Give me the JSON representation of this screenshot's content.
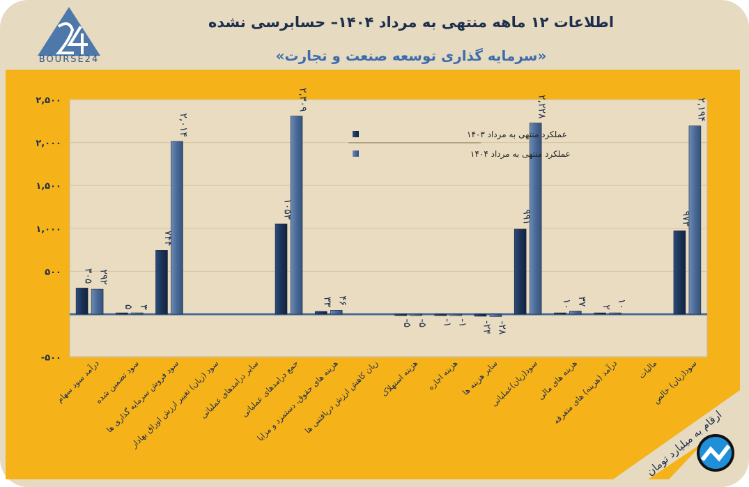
{
  "header": {
    "title": "اطلاعات ۱۲ ماهه منتهی به مرداد ۱۴۰۴– حسابرسی نشده",
    "subtitle": "«سرمایه گذاری توسعه صنعت و تجارت»",
    "logo_text": "BOURSE24"
  },
  "footer": {
    "unit_note": "ارقام به میلیارد تومان"
  },
  "colors": {
    "panel": "#f6b219",
    "plot_bg": "#e9dcc1",
    "series_1403": "#1c3357",
    "series_1404": "#4a6a96",
    "title": "#1d2e4d",
    "subtitle": "#3d6cad"
  },
  "chart_data": {
    "type": "bar",
    "title": "اطلاعات ۱۲ ماهه منتهی به مرداد ۱۴۰۴– حسابرسی نشده",
    "xlabel": "",
    "ylabel": "",
    "ylim": [
      -500,
      2500
    ],
    "yticks": [
      -500,
      0,
      500,
      1000,
      1500,
      2000,
      2500
    ],
    "ytick_labels": [
      "-۵۰۰",
      "",
      "۵۰۰",
      "۱,۰۰۰",
      "۱,۵۰۰",
      "۲,۰۰۰",
      "۲,۵۰۰"
    ],
    "legend_position": "top-center",
    "categories": [
      "درآمد سود سهام",
      "سود تضمین شده",
      "سود فروش سرمایه گذاری ها",
      "سود (زیان) تغییر ارزش اوراق بهادار",
      "سایر درامدهای عملیاتی",
      "جمع درامدهای عملیاتی",
      "هزینه های حقوق، دستمزد و مزایا",
      "زیان کاهش ارزش دریافتنی ها",
      "هزینه استهلاک",
      "هزینه اجاره",
      "سایر هزینه ها",
      "سود(زیان)عملیاتی",
      "هزینه های مالی",
      "درآمد (هزینه) های متفرقه",
      "مالیات",
      "سود(زیان) خالص"
    ],
    "series": [
      {
        "name": "عملکرد منتهی به مرداد   ۱۴۰۳",
        "values": [
          305,
          5,
          744,
          null,
          null,
          1053,
          33,
          null,
          -5,
          -1,
          -24,
          991,
          10,
          2,
          null,
          973
        ],
        "labels": [
          "۳۰۵",
          "۵",
          "۷۴۴",
          "",
          "",
          "۱۰۵۳",
          "۳۳",
          "",
          "-۵",
          "-۱",
          "-۲۴",
          "۹۹۱",
          "۱۰",
          "۲",
          "",
          "۹۷۳"
        ]
      },
      {
        "name": "عملکرد منتهی به مرداد  ۱۴۰۴",
        "values": [
          292,
          3,
          2014,
          null,
          null,
          2309,
          46,
          null,
          -5,
          -1,
          -28,
          2228,
          37,
          10,
          null,
          2194
        ],
        "labels": [
          "۲۹۲",
          "۳",
          "۲,۰۱۴",
          "",
          "",
          "۲,۳۰۹",
          "۴۶",
          "",
          "-۵",
          "-۱",
          "-۲۸",
          "۲,۲۲۸",
          "۳۷",
          "۱۰",
          "",
          "۲,۱۹۴"
        ]
      }
    ]
  }
}
